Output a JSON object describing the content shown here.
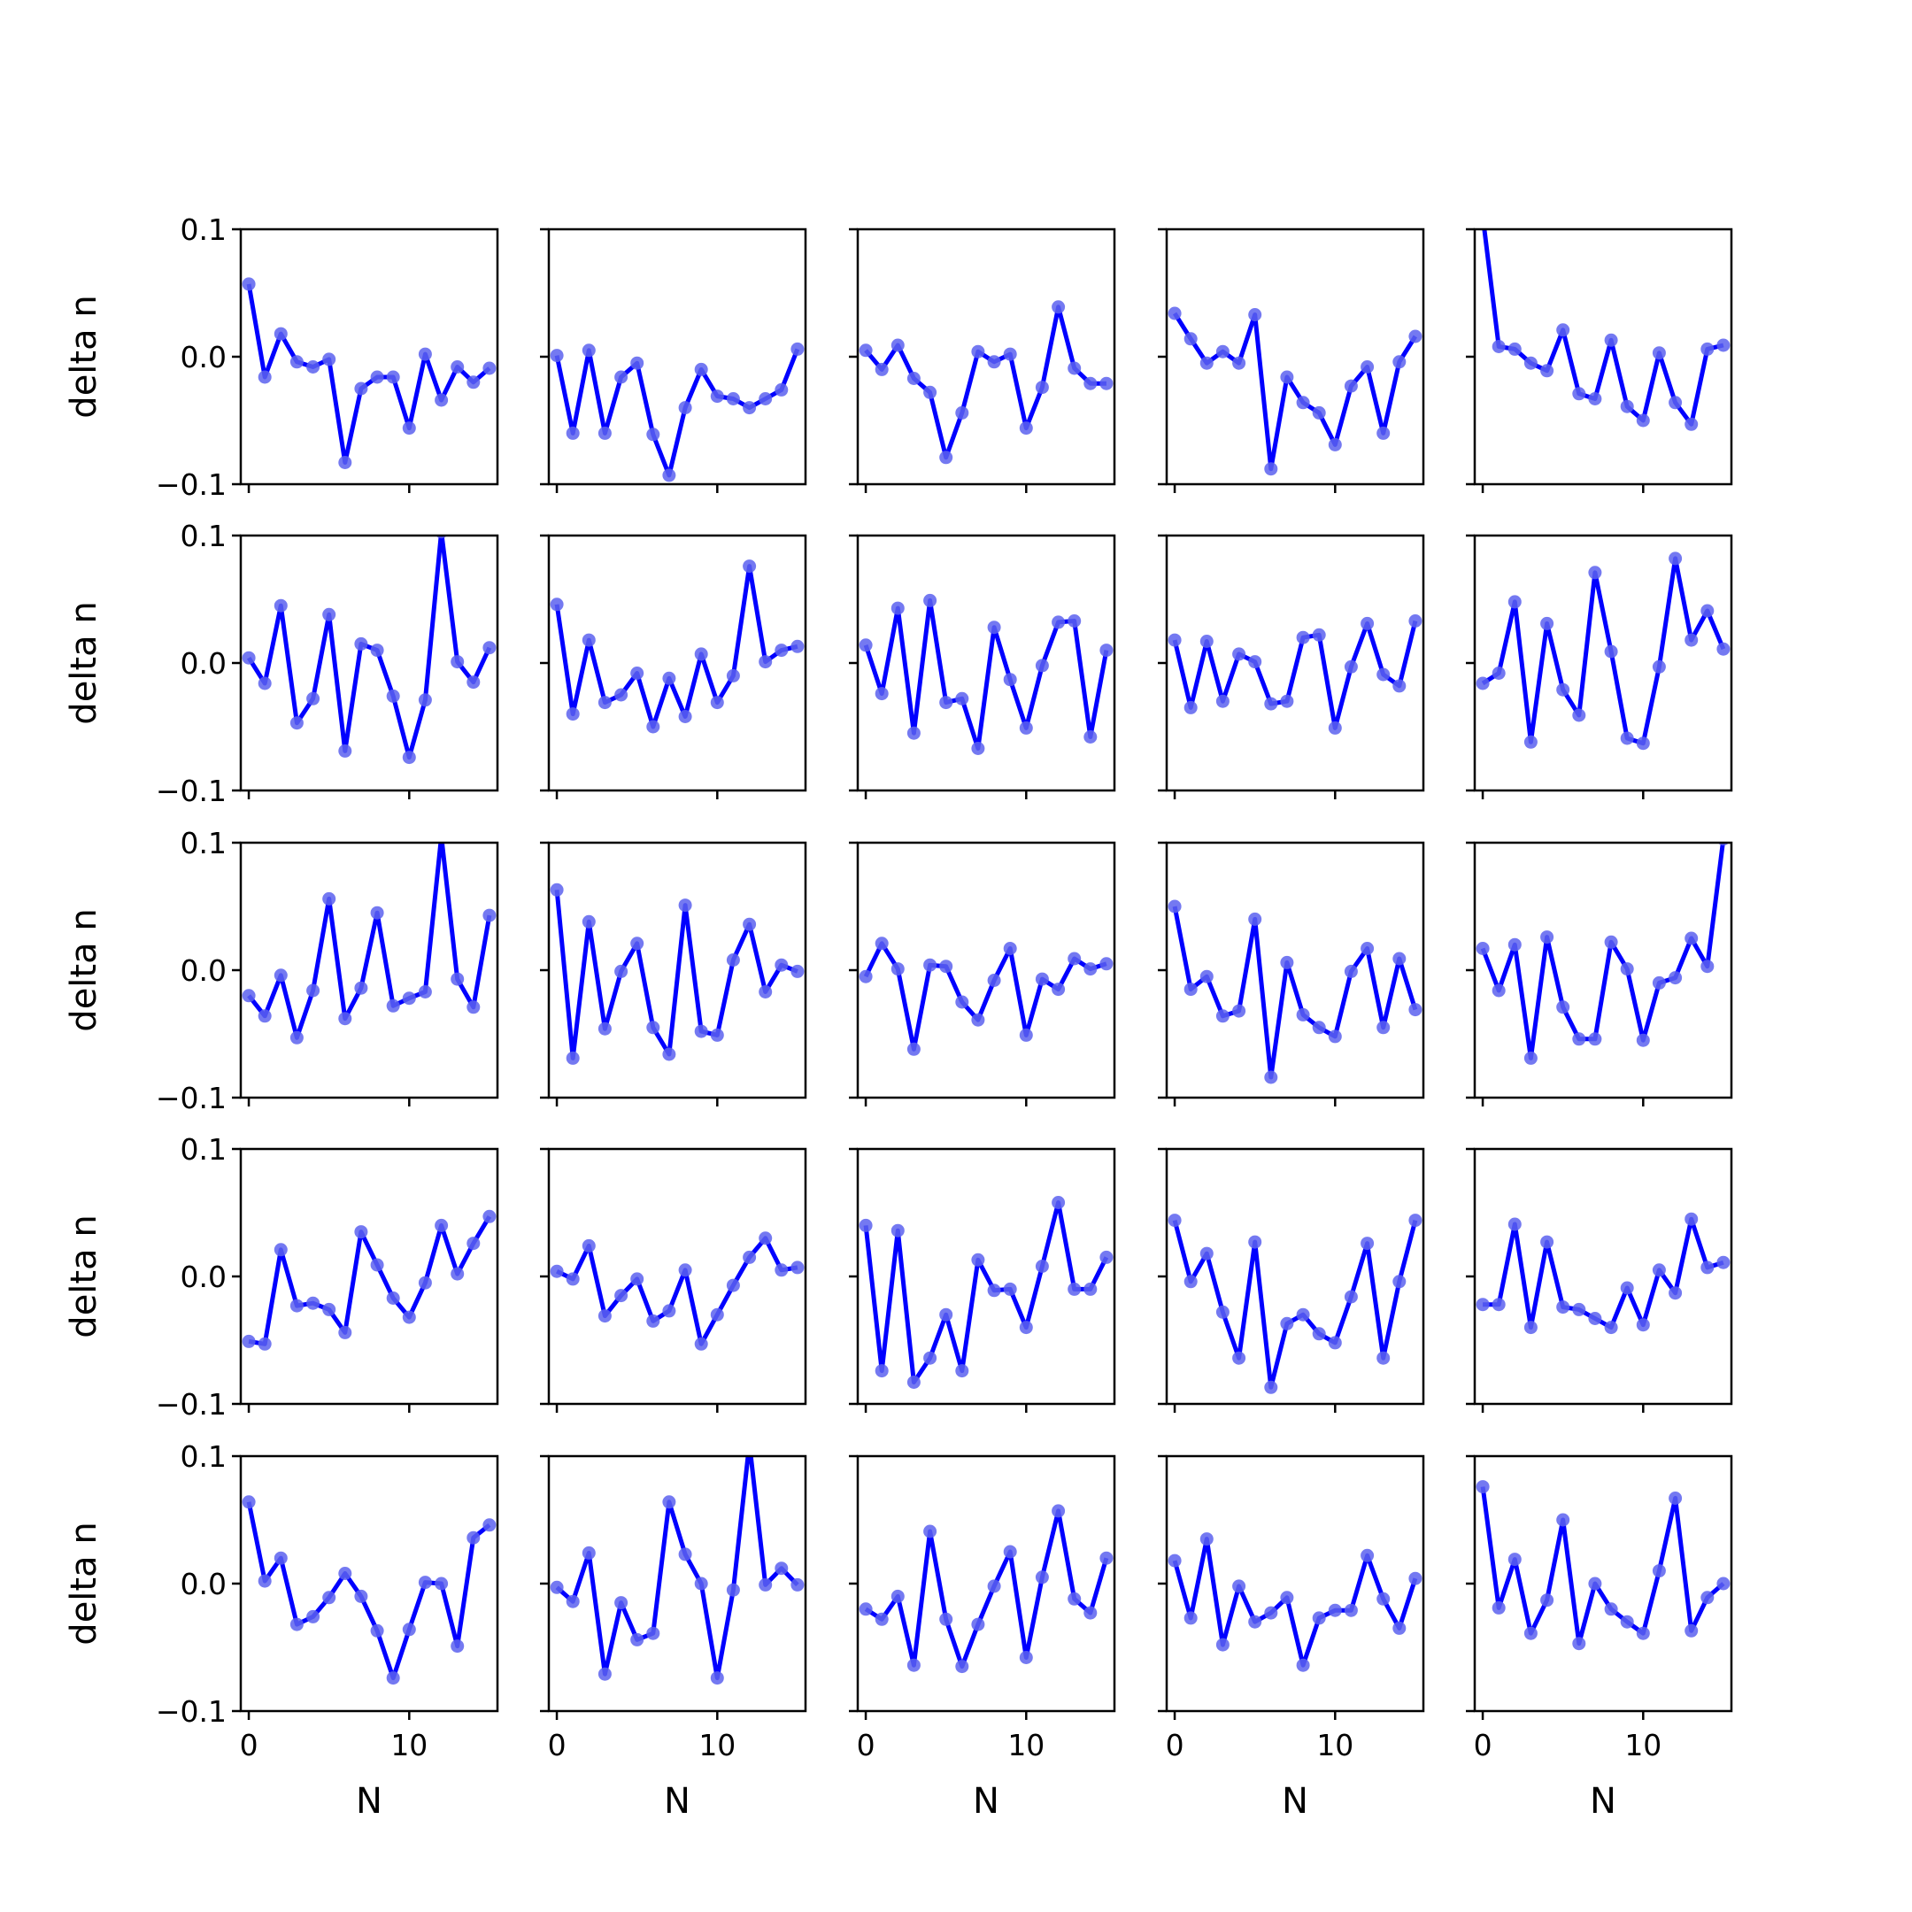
{
  "chart_data": {
    "type": "line",
    "layout": {
      "rows": 5,
      "cols": 5
    },
    "x": [
      0,
      1,
      2,
      3,
      4,
      5,
      6,
      7,
      8,
      9,
      10,
      11,
      12,
      13,
      14,
      15
    ],
    "xlim": [
      -0.5,
      15.5
    ],
    "ylim": [
      -0.1,
      0.1
    ],
    "xticks": [
      0,
      10
    ],
    "xtick_labels": [
      "0",
      "10"
    ],
    "yticks": [
      -0.1,
      0.0,
      0.1
    ],
    "ytick_labels": [
      "−0.1",
      "0.0",
      "0.1"
    ],
    "xlabel": "N",
    "ylabel": "delta n",
    "grid": false,
    "colors": {
      "line": "#0000ff",
      "marker": "#5c62ee"
    },
    "panels": [
      {
        "row": 0,
        "col": 0,
        "values": [
          0.057,
          -0.016,
          0.018,
          -0.004,
          -0.008,
          -0.002,
          -0.083,
          -0.025,
          -0.016,
          -0.016,
          -0.056,
          0.002,
          -0.034,
          -0.008,
          -0.02,
          -0.009
        ]
      },
      {
        "row": 0,
        "col": 1,
        "values": [
          0.001,
          -0.06,
          0.005,
          -0.06,
          -0.016,
          -0.005,
          -0.061,
          -0.093,
          -0.04,
          -0.01,
          -0.031,
          -0.033,
          -0.04,
          -0.033,
          -0.026,
          0.006
        ]
      },
      {
        "row": 0,
        "col": 2,
        "values": [
          0.005,
          -0.01,
          0.009,
          -0.017,
          -0.028,
          -0.079,
          -0.044,
          0.004,
          -0.004,
          0.002,
          -0.056,
          -0.024,
          0.039,
          -0.009,
          -0.021,
          -0.021
        ]
      },
      {
        "row": 0,
        "col": 3,
        "values": [
          0.034,
          0.014,
          -0.005,
          0.004,
          -0.005,
          0.033,
          -0.088,
          -0.016,
          -0.036,
          -0.044,
          -0.069,
          -0.023,
          -0.008,
          -0.06,
          -0.004,
          0.016
        ]
      },
      {
        "row": 0,
        "col": 4,
        "values": [
          0.11,
          0.008,
          0.006,
          -0.005,
          -0.011,
          0.021,
          -0.029,
          -0.033,
          0.013,
          -0.039,
          -0.05,
          0.003,
          -0.036,
          -0.053,
          0.006,
          0.009
        ]
      },
      {
        "row": 1,
        "col": 0,
        "values": [
          0.004,
          -0.016,
          0.045,
          -0.047,
          -0.028,
          0.038,
          -0.069,
          0.015,
          0.01,
          -0.026,
          -0.074,
          -0.029,
          0.103,
          0.001,
          -0.015,
          0.012
        ]
      },
      {
        "row": 1,
        "col": 1,
        "values": [
          0.046,
          -0.04,
          0.018,
          -0.031,
          -0.025,
          -0.008,
          -0.05,
          -0.012,
          -0.042,
          0.007,
          -0.031,
          -0.01,
          0.076,
          0.001,
          0.01,
          0.013
        ]
      },
      {
        "row": 1,
        "col": 2,
        "values": [
          0.014,
          -0.024,
          0.043,
          -0.055,
          0.049,
          -0.031,
          -0.028,
          -0.067,
          0.028,
          -0.013,
          -0.051,
          -0.002,
          0.032,
          0.033,
          -0.058,
          0.01
        ]
      },
      {
        "row": 1,
        "col": 3,
        "values": [
          0.018,
          -0.035,
          0.017,
          -0.03,
          0.007,
          0.001,
          -0.032,
          -0.03,
          0.02,
          0.022,
          -0.051,
          -0.003,
          0.031,
          -0.009,
          -0.018,
          0.033
        ]
      },
      {
        "row": 1,
        "col": 4,
        "values": [
          -0.016,
          -0.008,
          0.048,
          -0.062,
          0.031,
          -0.021,
          -0.041,
          0.071,
          0.009,
          -0.059,
          -0.063,
          -0.003,
          0.082,
          0.018,
          0.041,
          0.011
        ]
      },
      {
        "row": 2,
        "col": 0,
        "values": [
          -0.02,
          -0.036,
          -0.004,
          -0.053,
          -0.016,
          0.056,
          -0.038,
          -0.014,
          0.045,
          -0.028,
          -0.022,
          -0.017,
          0.105,
          -0.007,
          -0.029,
          0.043
        ]
      },
      {
        "row": 2,
        "col": 1,
        "values": [
          0.063,
          -0.069,
          0.038,
          -0.046,
          -0.001,
          0.021,
          -0.045,
          -0.066,
          0.051,
          -0.048,
          -0.051,
          0.008,
          0.036,
          -0.017,
          0.004,
          -0.001
        ]
      },
      {
        "row": 2,
        "col": 2,
        "values": [
          -0.005,
          0.021,
          0.001,
          -0.062,
          0.004,
          0.003,
          -0.025,
          -0.039,
          -0.008,
          0.017,
          -0.051,
          -0.007,
          -0.015,
          0.009,
          0.001,
          0.005
        ]
      },
      {
        "row": 2,
        "col": 3,
        "values": [
          0.05,
          -0.015,
          -0.005,
          -0.036,
          -0.032,
          0.04,
          -0.084,
          0.006,
          -0.035,
          -0.045,
          -0.052,
          -0.001,
          0.017,
          -0.045,
          0.009,
          -0.031
        ]
      },
      {
        "row": 2,
        "col": 4,
        "values": [
          0.017,
          -0.016,
          0.02,
          -0.069,
          0.026,
          -0.029,
          -0.054,
          -0.054,
          0.022,
          0.001,
          -0.055,
          -0.01,
          -0.006,
          0.025,
          0.003,
          0.103
        ]
      },
      {
        "row": 3,
        "col": 0,
        "values": [
          -0.051,
          -0.053,
          0.021,
          -0.023,
          -0.021,
          -0.026,
          -0.044,
          0.035,
          0.009,
          -0.017,
          -0.032,
          -0.005,
          0.04,
          0.002,
          0.026,
          0.047
        ]
      },
      {
        "row": 3,
        "col": 1,
        "values": [
          0.004,
          -0.002,
          0.024,
          -0.031,
          -0.015,
          -0.002,
          -0.035,
          -0.027,
          0.005,
          -0.053,
          -0.03,
          -0.007,
          0.015,
          0.03,
          0.005,
          0.007
        ]
      },
      {
        "row": 3,
        "col": 2,
        "values": [
          0.04,
          -0.074,
          0.036,
          -0.083,
          -0.064,
          -0.03,
          -0.074,
          0.013,
          -0.011,
          -0.01,
          -0.04,
          0.008,
          0.058,
          -0.01,
          -0.01,
          0.015
        ]
      },
      {
        "row": 3,
        "col": 3,
        "values": [
          0.044,
          -0.004,
          0.018,
          -0.028,
          -0.064,
          0.027,
          -0.087,
          -0.037,
          -0.03,
          -0.045,
          -0.052,
          -0.016,
          0.026,
          -0.064,
          -0.004,
          0.044
        ]
      },
      {
        "row": 3,
        "col": 4,
        "values": [
          -0.022,
          -0.022,
          0.041,
          -0.04,
          0.027,
          -0.024,
          -0.026,
          -0.033,
          -0.04,
          -0.009,
          -0.038,
          0.005,
          -0.013,
          0.045,
          0.007,
          0.011
        ]
      },
      {
        "row": 4,
        "col": 0,
        "values": [
          0.064,
          0.002,
          0.02,
          -0.032,
          -0.026,
          -0.011,
          0.008,
          -0.01,
          -0.037,
          -0.074,
          -0.036,
          0.001,
          0.0,
          -0.049,
          0.036,
          0.046
        ]
      },
      {
        "row": 4,
        "col": 1,
        "values": [
          -0.003,
          -0.014,
          0.024,
          -0.071,
          -0.015,
          -0.044,
          -0.039,
          0.064,
          0.023,
          0.0,
          -0.074,
          -0.005,
          0.11,
          -0.001,
          0.012,
          -0.001
        ]
      },
      {
        "row": 4,
        "col": 2,
        "values": [
          -0.02,
          -0.028,
          -0.01,
          -0.064,
          0.041,
          -0.028,
          -0.065,
          -0.032,
          -0.002,
          0.025,
          -0.058,
          0.005,
          0.057,
          -0.012,
          -0.023,
          0.02
        ]
      },
      {
        "row": 4,
        "col": 3,
        "values": [
          0.018,
          -0.027,
          0.035,
          -0.048,
          -0.002,
          -0.03,
          -0.023,
          -0.011,
          -0.064,
          -0.027,
          -0.021,
          -0.021,
          0.022,
          -0.012,
          -0.035,
          0.004
        ]
      },
      {
        "row": 4,
        "col": 4,
        "values": [
          0.076,
          -0.019,
          0.019,
          -0.039,
          -0.013,
          0.05,
          -0.047,
          0.0,
          -0.02,
          -0.03,
          -0.039,
          0.01,
          0.067,
          -0.037,
          -0.011,
          0.0
        ]
      }
    ]
  }
}
